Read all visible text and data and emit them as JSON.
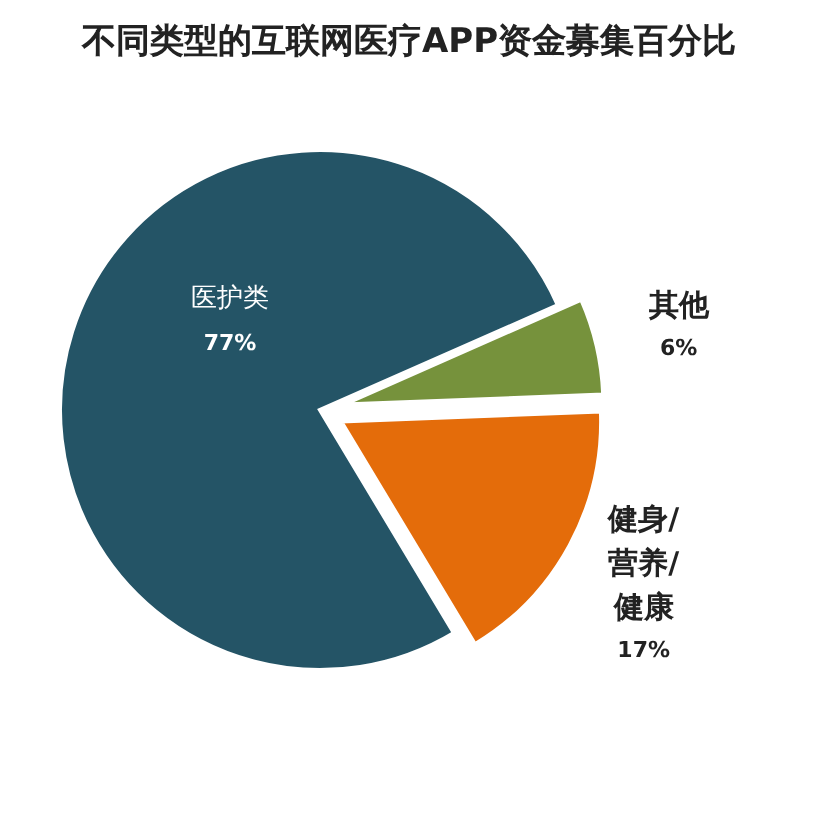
{
  "chart_data": {
    "type": "pie",
    "title": "不同类型的互联网医疗APP资金募集百分比",
    "categories": [
      "医护类",
      "其他",
      "健身/营养/健康"
    ],
    "values": [
      77,
      6,
      17
    ],
    "colors": [
      "#245466",
      "#76923c",
      "#e46c0a"
    ],
    "value_labels": [
      "77%",
      "6%",
      "17%"
    ],
    "legend": false
  }
}
